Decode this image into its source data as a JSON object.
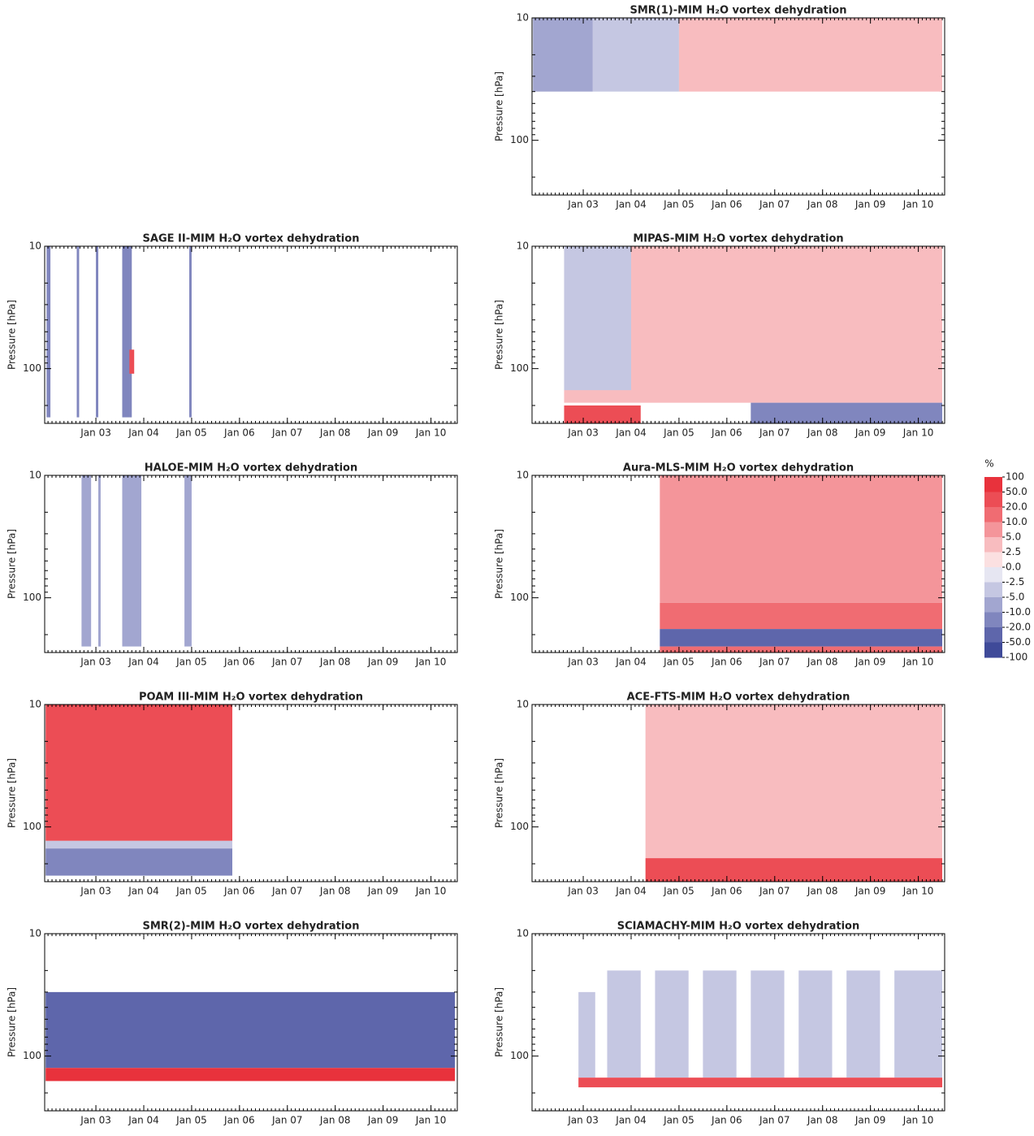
{
  "chart_data": [
    {
      "type": "heatmap",
      "title": "SMR(1)-MIM H₂O vortex dehydration",
      "y_label": "Pressure [hPa]",
      "log_y": true,
      "xlim": [
        2001.93,
        2010.55
      ],
      "xticks": [
        {
          "value": 2003,
          "label": "Jan 03"
        },
        {
          "value": 2004,
          "label": "Jan 04"
        },
        {
          "value": 2005,
          "label": "Jan 05"
        },
        {
          "value": 2006,
          "label": "Jan 06"
        },
        {
          "value": 2007,
          "label": "Jan 07"
        },
        {
          "value": 2008,
          "label": "Jan 08"
        },
        {
          "value": 2009,
          "label": "Jan 09"
        },
        {
          "value": 2010,
          "label": "Jan 10"
        }
      ],
      "ylim": [
        10,
        280
      ],
      "yticks": [
        10,
        100
      ],
      "cells": [
        {
          "x": [
            2001.95,
            2003.2
          ],
          "p": [
            10,
            40
          ],
          "value": -10
        },
        {
          "x": [
            2003.2,
            2005.0
          ],
          "p": [
            10,
            40
          ],
          "value": -5
        },
        {
          "x": [
            2005.0,
            2010.5
          ],
          "p": [
            10,
            40
          ],
          "value": 2.5
        }
      ]
    },
    {
      "type": "heatmap",
      "title": "SAGE II-MIM H₂O vortex dehydration",
      "y_label": "Pressure [hPa]",
      "log_y": true,
      "xlim": [
        2001.93,
        2010.55
      ],
      "xticks": [
        {
          "value": 2003,
          "label": "Jan 03"
        },
        {
          "value": 2004,
          "label": "Jan 04"
        },
        {
          "value": 2005,
          "label": "Jan 05"
        },
        {
          "value": 2006,
          "label": "Jan 06"
        },
        {
          "value": 2007,
          "label": "Jan 07"
        },
        {
          "value": 2008,
          "label": "Jan 08"
        },
        {
          "value": 2009,
          "label": "Jan 09"
        },
        {
          "value": 2010,
          "label": "Jan 10"
        }
      ],
      "ylim": [
        10,
        280
      ],
      "yticks": [
        10,
        100
      ],
      "cells": [
        {
          "x": [
            2001.97,
            2002.05
          ],
          "p": [
            10,
            250
          ],
          "value": -20
        },
        {
          "x": [
            2002.6,
            2002.65
          ],
          "p": [
            10,
            250
          ],
          "value": -20
        },
        {
          "x": [
            2003.0,
            2003.05
          ],
          "p": [
            10,
            250
          ],
          "value": -20
        },
        {
          "x": [
            2003.55,
            2003.75
          ],
          "p": [
            10,
            250
          ],
          "value": -20
        },
        {
          "x": [
            2003.7,
            2003.8
          ],
          "p": [
            70,
            110
          ],
          "value": 20
        },
        {
          "x": [
            2004.95,
            2005.0
          ],
          "p": [
            10,
            250
          ],
          "value": -20
        }
      ]
    },
    {
      "type": "heatmap",
      "title": "MIPAS-MIM H₂O vortex dehydration",
      "y_label": "Pressure [hPa]",
      "log_y": true,
      "xlim": [
        2001.93,
        2010.55
      ],
      "xticks": [
        {
          "value": 2003,
          "label": "Jan 03"
        },
        {
          "value": 2004,
          "label": "Jan 04"
        },
        {
          "value": 2005,
          "label": "Jan 05"
        },
        {
          "value": 2006,
          "label": "Jan 06"
        },
        {
          "value": 2007,
          "label": "Jan 07"
        },
        {
          "value": 2008,
          "label": "Jan 08"
        },
        {
          "value": 2009,
          "label": "Jan 09"
        },
        {
          "value": 2010,
          "label": "Jan 10"
        }
      ],
      "ylim": [
        10,
        280
      ],
      "yticks": [
        10,
        100
      ],
      "cells": [
        {
          "x": [
            2002.6,
            2010.5
          ],
          "p": [
            10,
            190
          ],
          "value": 2.5
        },
        {
          "x": [
            2002.6,
            2004.0
          ],
          "p": [
            10,
            150
          ],
          "value": -5
        },
        {
          "x": [
            2002.6,
            2004.2
          ],
          "p": [
            200,
            280
          ],
          "value": 20
        },
        {
          "x": [
            2006.5,
            2010.5
          ],
          "p": [
            190,
            280
          ],
          "value": -20
        }
      ]
    },
    {
      "type": "heatmap",
      "title": "HALOE-MIM H₂O vortex dehydration",
      "y_label": "Pressure [hPa]",
      "log_y": true,
      "xlim": [
        2001.93,
        2010.55
      ],
      "xticks": [
        {
          "value": 2003,
          "label": "Jan 03"
        },
        {
          "value": 2004,
          "label": "Jan 04"
        },
        {
          "value": 2005,
          "label": "Jan 05"
        },
        {
          "value": 2006,
          "label": "Jan 06"
        },
        {
          "value": 2007,
          "label": "Jan 07"
        },
        {
          "value": 2008,
          "label": "Jan 08"
        },
        {
          "value": 2009,
          "label": "Jan 09"
        },
        {
          "value": 2010,
          "label": "Jan 10"
        }
      ],
      "ylim": [
        10,
        280
      ],
      "yticks": [
        10,
        100
      ],
      "cells": [
        {
          "x": [
            2002.7,
            2002.9
          ],
          "p": [
            10,
            250
          ],
          "value": -10
        },
        {
          "x": [
            2003.05,
            2003.1
          ],
          "p": [
            10,
            250
          ],
          "value": -10
        },
        {
          "x": [
            2003.55,
            2003.95
          ],
          "p": [
            10,
            250
          ],
          "value": -10
        },
        {
          "x": [
            2004.85,
            2005.0
          ],
          "p": [
            10,
            250
          ],
          "value": -10
        }
      ]
    },
    {
      "type": "heatmap",
      "title": "Aura-MLS-MIM H₂O vortex dehydration",
      "y_label": "Pressure [hPa]",
      "log_y": true,
      "xlim": [
        2001.93,
        2010.55
      ],
      "xticks": [
        {
          "value": 2003,
          "label": "Jan 03"
        },
        {
          "value": 2004,
          "label": "Jan 04"
        },
        {
          "value": 2005,
          "label": "Jan 05"
        },
        {
          "value": 2006,
          "label": "Jan 06"
        },
        {
          "value": 2007,
          "label": "Jan 07"
        },
        {
          "value": 2008,
          "label": "Jan 08"
        },
        {
          "value": 2009,
          "label": "Jan 09"
        },
        {
          "value": 2010,
          "label": "Jan 10"
        }
      ],
      "ylim": [
        10,
        280
      ],
      "yticks": [
        10,
        100
      ],
      "cells": [
        {
          "x": [
            2004.6,
            2010.5
          ],
          "p": [
            10,
            110
          ],
          "value": 5
        },
        {
          "x": [
            2004.6,
            2010.5
          ],
          "p": [
            110,
            180
          ],
          "value": 10
        },
        {
          "x": [
            2004.6,
            2010.5
          ],
          "p": [
            180,
            250
          ],
          "value": -50
        },
        {
          "x": [
            2004.6,
            2010.5
          ],
          "p": [
            250,
            280
          ],
          "value": 10
        }
      ]
    },
    {
      "type": "heatmap",
      "title": "POAM III-MIM H₂O vortex dehydration",
      "y_label": "Pressure [hPa]",
      "log_y": true,
      "xlim": [
        2001.93,
        2010.55
      ],
      "xticks": [
        {
          "value": 2003,
          "label": "Jan 03"
        },
        {
          "value": 2004,
          "label": "Jan 04"
        },
        {
          "value": 2005,
          "label": "Jan 05"
        },
        {
          "value": 2006,
          "label": "Jan 06"
        },
        {
          "value": 2007,
          "label": "Jan 07"
        },
        {
          "value": 2008,
          "label": "Jan 08"
        },
        {
          "value": 2009,
          "label": "Jan 09"
        },
        {
          "value": 2010,
          "label": "Jan 10"
        }
      ],
      "ylim": [
        10,
        280
      ],
      "yticks": [
        10,
        100
      ],
      "cells": [
        {
          "x": [
            2001.95,
            2005.85
          ],
          "p": [
            10,
            130
          ],
          "value": 20
        },
        {
          "x": [
            2001.95,
            2005.85
          ],
          "p": [
            130,
            150
          ],
          "value": -5
        },
        {
          "x": [
            2001.95,
            2005.85
          ],
          "p": [
            150,
            250
          ],
          "value": -20
        }
      ]
    },
    {
      "type": "heatmap",
      "title": "ACE-FTS-MIM H₂O vortex dehydration",
      "y_label": "Pressure [hPa]",
      "log_y": true,
      "xlim": [
        2001.93,
        2010.55
      ],
      "xticks": [
        {
          "value": 2003,
          "label": "Jan 03"
        },
        {
          "value": 2004,
          "label": "Jan 04"
        },
        {
          "value": 2005,
          "label": "Jan 05"
        },
        {
          "value": 2006,
          "label": "Jan 06"
        },
        {
          "value": 2007,
          "label": "Jan 07"
        },
        {
          "value": 2008,
          "label": "Jan 08"
        },
        {
          "value": 2009,
          "label": "Jan 09"
        },
        {
          "value": 2010,
          "label": "Jan 10"
        }
      ],
      "ylim": [
        10,
        280
      ],
      "yticks": [
        10,
        100
      ],
      "cells": [
        {
          "x": [
            2004.3,
            2010.5
          ],
          "p": [
            10,
            180
          ],
          "value": 2.5
        },
        {
          "x": [
            2004.3,
            2010.5
          ],
          "p": [
            180,
            280
          ],
          "value": 20
        }
      ]
    },
    {
      "type": "heatmap",
      "title": "SMR(2)-MIM H₂O vortex dehydration",
      "y_label": "Pressure [hPa]",
      "log_y": true,
      "xlim": [
        2001.93,
        2010.55
      ],
      "xticks": [
        {
          "value": 2003,
          "label": "Jan 03"
        },
        {
          "value": 2004,
          "label": "Jan 04"
        },
        {
          "value": 2005,
          "label": "Jan 05"
        },
        {
          "value": 2006,
          "label": "Jan 06"
        },
        {
          "value": 2007,
          "label": "Jan 07"
        },
        {
          "value": 2008,
          "label": "Jan 08"
        },
        {
          "value": 2009,
          "label": "Jan 09"
        },
        {
          "value": 2010,
          "label": "Jan 10"
        }
      ],
      "ylim": [
        10,
        280
      ],
      "yticks": [
        10,
        100
      ],
      "cells": [
        {
          "x": [
            2001.95,
            2010.5
          ],
          "p": [
            30,
            125
          ],
          "value": -50
        },
        {
          "x": [
            2001.95,
            2010.5
          ],
          "p": [
            125,
            160
          ],
          "value": 50
        }
      ]
    },
    {
      "type": "heatmap",
      "title": "SCIAMACHY-MIM H₂O vortex dehydration",
      "y_label": "Pressure [hPa]",
      "log_y": true,
      "xlim": [
        2001.93,
        2010.55
      ],
      "xticks": [
        {
          "value": 2003,
          "label": "Jan 03"
        },
        {
          "value": 2004,
          "label": "Jan 04"
        },
        {
          "value": 2005,
          "label": "Jan 05"
        },
        {
          "value": 2006,
          "label": "Jan 06"
        },
        {
          "value": 2007,
          "label": "Jan 07"
        },
        {
          "value": 2008,
          "label": "Jan 08"
        },
        {
          "value": 2009,
          "label": "Jan 09"
        },
        {
          "value": 2010,
          "label": "Jan 10"
        }
      ],
      "ylim": [
        10,
        280
      ],
      "yticks": [
        10,
        100
      ],
      "cells": [
        {
          "x": [
            2002.9,
            2003.25
          ],
          "p": [
            30,
            150
          ],
          "value": -5
        },
        {
          "x": [
            2003.5,
            2004.2
          ],
          "p": [
            20,
            150
          ],
          "value": -5
        },
        {
          "x": [
            2004.5,
            2005.2
          ],
          "p": [
            20,
            150
          ],
          "value": -5
        },
        {
          "x": [
            2005.5,
            2006.2
          ],
          "p": [
            20,
            150
          ],
          "value": -5
        },
        {
          "x": [
            2006.5,
            2007.2
          ],
          "p": [
            20,
            150
          ],
          "value": -5
        },
        {
          "x": [
            2007.5,
            2008.2
          ],
          "p": [
            20,
            150
          ],
          "value": -5
        },
        {
          "x": [
            2008.5,
            2009.2
          ],
          "p": [
            20,
            150
          ],
          "value": -5
        },
        {
          "x": [
            2009.5,
            2010.5
          ],
          "p": [
            20,
            150
          ],
          "value": -5
        },
        {
          "x": [
            2002.9,
            2010.5
          ],
          "p": [
            150,
            180
          ],
          "value": 20
        }
      ]
    }
  ],
  "colorbar": {
    "title": "%",
    "ticks": [
      100,
      {
        "value": 50,
        "label": "50.0"
      },
      {
        "value": 20,
        "label": "20.0"
      },
      {
        "value": 10,
        "label": "10.0"
      },
      {
        "value": 5,
        "label": "5.0"
      },
      2.5,
      {
        "value": 0,
        "label": "0.0"
      },
      -2.5,
      {
        "value": -5,
        "label": "-5.0"
      },
      {
        "value": -10,
        "label": "-10.0"
      },
      {
        "value": -20,
        "label": "-20.0"
      },
      {
        "value": -50,
        "label": "-50.0"
      },
      -100
    ],
    "colors": [
      "#e8323c",
      "#ec4d55",
      "#f06c72",
      "#f4959a",
      "#f8bcbf",
      "#fbe0e1",
      "#e6e6f2",
      "#c5c7e2",
      "#a2a6d0",
      "#8086be",
      "#5e66ab",
      "#3f4a99"
    ]
  }
}
